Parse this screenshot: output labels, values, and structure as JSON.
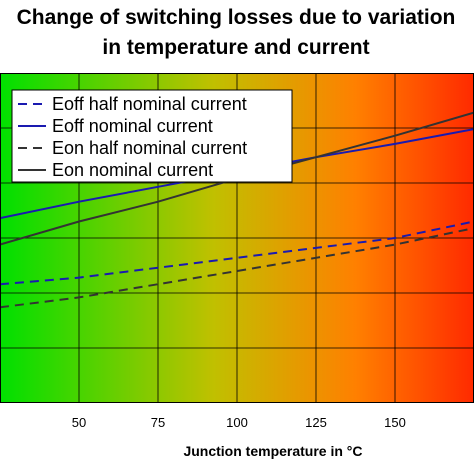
{
  "chart_data": {
    "type": "line",
    "title_lines": [
      "Change of switching losses due to variation",
      "in temperature and current"
    ],
    "xlabel": "Junction temperature in °C",
    "ylabel": "",
    "xlim": [
      25,
      175
    ],
    "ylim": [
      0,
      1
    ],
    "x_ticks": [
      50,
      75,
      100,
      125,
      150
    ],
    "x_tick_labels": [
      "50",
      "75",
      "100",
      "125",
      "150"
    ],
    "y_grid_count": 6,
    "grid": true,
    "background_gradient": [
      "#00e000",
      "#c0c000",
      "#ff8000",
      "#ff2a00"
    ],
    "legend_position": "top-left",
    "series": [
      {
        "name": "Eoff half nominal current",
        "color": "#1a1ab0",
        "dash": "dashed",
        "x": [
          25,
          50,
          75,
          100,
          125,
          150,
          175
        ],
        "y": [
          0.36,
          0.38,
          0.41,
          0.44,
          0.47,
          0.5,
          0.55
        ]
      },
      {
        "name": "Eoff nominal current",
        "color": "#1a1ab0",
        "dash": "solid",
        "x": [
          25,
          50,
          75,
          100,
          125,
          150,
          175
        ],
        "y": [
          0.56,
          0.61,
          0.655,
          0.7,
          0.745,
          0.785,
          0.83
        ]
      },
      {
        "name": "Eon half nominal current",
        "color": "#333333",
        "dash": "dashed",
        "x": [
          25,
          50,
          75,
          100,
          125,
          150,
          175
        ],
        "y": [
          0.29,
          0.32,
          0.36,
          0.4,
          0.44,
          0.48,
          0.53
        ]
      },
      {
        "name": "Eon nominal current",
        "color": "#333333",
        "dash": "solid",
        "x": [
          25,
          50,
          75,
          100,
          125,
          150,
          175
        ],
        "y": [
          0.48,
          0.55,
          0.61,
          0.68,
          0.745,
          0.81,
          0.88
        ]
      }
    ]
  }
}
